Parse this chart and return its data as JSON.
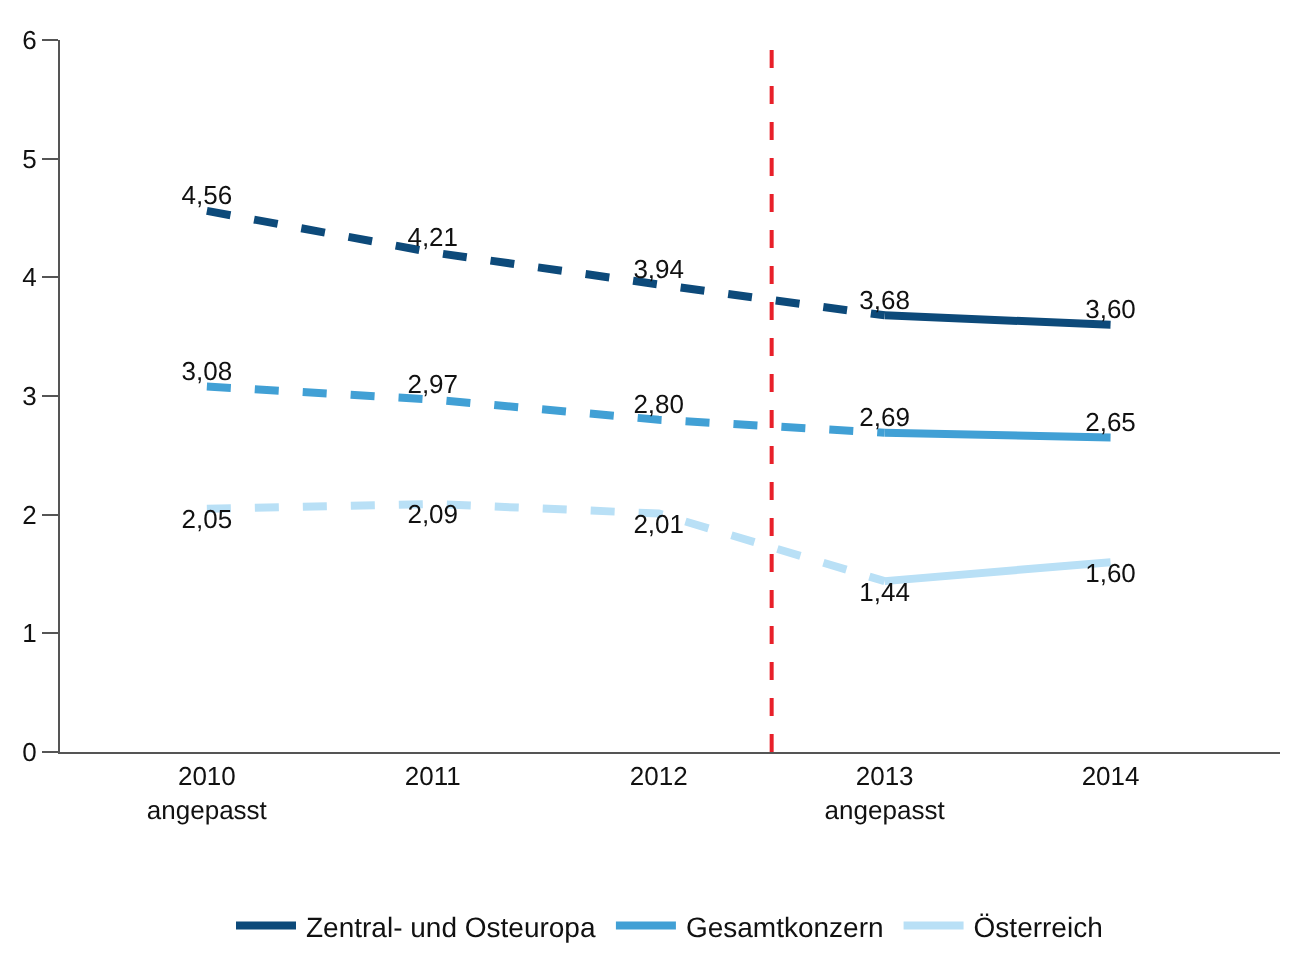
{
  "chart_data": {
    "type": "line",
    "x": [
      2010,
      2011,
      2012,
      2013,
      2014
    ],
    "xlim": [
      2009.35,
      2014.75
    ],
    "xticks": [
      {
        "value": 2010,
        "label": "2010\nangepasst"
      },
      2011,
      2012,
      {
        "value": 2013,
        "label": "2013\nangepasst"
      },
      2014
    ],
    "ylim": [
      0,
      6
    ],
    "yticks": [
      0,
      1,
      2,
      3,
      4,
      5,
      6
    ],
    "grid": false,
    "legend": "bottom",
    "marker": "none",
    "series": [
      {
        "color": "#0d4a7a",
        "line_style": "dashed",
        "values": [
          4.56,
          4.21,
          3.94,
          3.68,
          null
        ],
        "value_labels": [
          "4,56",
          "4,21",
          "3,94",
          null,
          null
        ]
      },
      {
        "color": "#41a0d5",
        "line_style": "dashed",
        "values": [
          3.08,
          2.97,
          2.8,
          2.69,
          null
        ],
        "value_labels": [
          "3,08",
          "2,97",
          "2,80",
          null,
          null
        ]
      },
      {
        "color": "#b9e0f6",
        "line_style": "dashed",
        "values": [
          2.05,
          2.09,
          2.01,
          1.44,
          null
        ],
        "value_labels": [
          "2,05",
          "2,09",
          "2,01",
          null,
          null
        ]
      },
      {
        "name": "Zentral- und Osteuropa",
        "color": "#0d4a7a",
        "line_style": "solid",
        "values": [
          null,
          null,
          null,
          3.68,
          3.6
        ],
        "value_labels": [
          null,
          null,
          null,
          "3,68",
          "3,60"
        ]
      },
      {
        "name": "Gesamtkonzern",
        "color": "#41a0d5",
        "line_style": "solid",
        "values": [
          null,
          null,
          null,
          2.69,
          2.65
        ],
        "value_labels": [
          null,
          null,
          null,
          "2,69",
          "2,65"
        ]
      },
      {
        "name": "Österreich",
        "color": "#b9e0f6",
        "line_style": "solid",
        "values": [
          null,
          null,
          null,
          1.44,
          1.6
        ],
        "value_labels": [
          null,
          null,
          null,
          "1,44",
          "1,60"
        ]
      }
    ],
    "ref_lines": [
      {
        "axis": "x",
        "value": 2012.5,
        "color": "#e8202a",
        "line_style": "dashed"
      }
    ]
  }
}
